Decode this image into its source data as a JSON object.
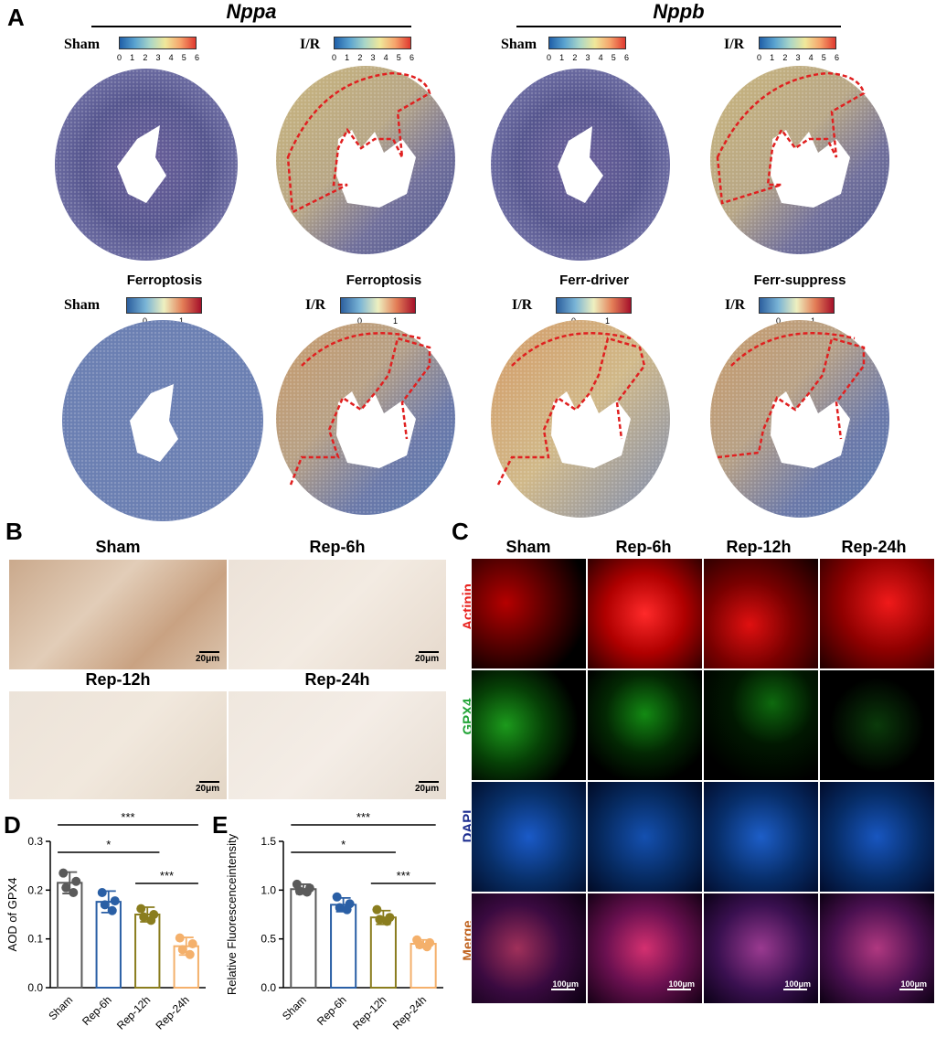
{
  "panel_a": {
    "letter": "A",
    "genes": [
      "Nppa",
      "Nppb"
    ],
    "colorbar_expr": {
      "ticks": [
        "0",
        "1",
        "2",
        "3",
        "4",
        "5",
        "6"
      ],
      "low": "#1f5fa8",
      "high": "#e0392f"
    },
    "colorbar_score": {
      "ticks": [
        "0",
        "1"
      ],
      "low": "#2c5f9e",
      "high": "#a5102a"
    },
    "row1_conditions": [
      "Sham",
      "I/R",
      "Sham",
      "I/R"
    ],
    "row2_titles": [
      "Ferroptosis",
      "Ferroptosis",
      "Ferr-driver",
      "Ferr-suppress"
    ],
    "row2_conditions": [
      "Sham",
      "I/R",
      "I/R",
      "I/R"
    ]
  },
  "panel_b": {
    "letter": "B",
    "titles": [
      "Sham",
      "Rep-6h",
      "Rep-12h",
      "Rep-24h"
    ],
    "scalebar": "20μm"
  },
  "panel_c": {
    "letter": "C",
    "columns": [
      "Sham",
      "Rep-6h",
      "Rep-12h",
      "Rep-24h"
    ],
    "rows": [
      {
        "label": "Actinin",
        "color": "#e8231f"
      },
      {
        "label": "GPX4",
        "color": "#22a437"
      },
      {
        "label": "DAPI",
        "color": "#1b2c8f"
      },
      {
        "label": "Merge",
        "color": "#c0621e"
      }
    ],
    "scalebar": "100μm"
  },
  "panel_d": {
    "letter": "D"
  },
  "panel_e": {
    "letter": "E"
  },
  "chart_data": [
    {
      "type": "bar",
      "ylabel": "AOD of GPX4",
      "categories": [
        "Sham",
        "Rep-6h",
        "Rep-12h",
        "Rep-24h"
      ],
      "values": [
        0.215,
        0.176,
        0.15,
        0.085
      ],
      "errors": [
        0.022,
        0.022,
        0.015,
        0.018
      ],
      "points": [
        [
          0.235,
          0.218,
          0.205,
          0.195
        ],
        [
          0.195,
          0.178,
          0.17,
          0.158
        ],
        [
          0.162,
          0.15,
          0.145,
          0.138
        ],
        [
          0.102,
          0.09,
          0.078,
          0.068
        ]
      ],
      "colors": [
        "#5a5a5a",
        "#2a5fa5",
        "#8a7d1e",
        "#f4b06b"
      ],
      "ylim": [
        0,
        0.3
      ],
      "yticks": [
        "0.0",
        "0.1",
        "0.2",
        "0.3"
      ],
      "significance": [
        {
          "from": 0,
          "to": 3,
          "label": "***"
        },
        {
          "from": 0,
          "to": 2,
          "label": "*"
        },
        {
          "from": 2,
          "to": 3,
          "label": "***"
        }
      ]
    },
    {
      "type": "bar",
      "ylabel": "Relative Fluorescenceintensity",
      "categories": [
        "Sham",
        "Rep-6h",
        "Rep-12h",
        "Rep-24h"
      ],
      "values": [
        1.01,
        0.85,
        0.72,
        0.45
      ],
      "errors": [
        0.05,
        0.07,
        0.07,
        0.04
      ],
      "points": [
        [
          1.06,
          1.02,
          0.99,
          0.98
        ],
        [
          0.93,
          0.86,
          0.82,
          0.8
        ],
        [
          0.8,
          0.72,
          0.7,
          0.68
        ],
        [
          0.49,
          0.46,
          0.44,
          0.42
        ]
      ],
      "colors": [
        "#5a5a5a",
        "#2a5fa5",
        "#8a7d1e",
        "#f4b06b"
      ],
      "ylim": [
        0,
        1.5
      ],
      "yticks": [
        "0.0",
        "0.5",
        "1.0",
        "1.5"
      ],
      "significance": [
        {
          "from": 0,
          "to": 3,
          "label": "***"
        },
        {
          "from": 0,
          "to": 2,
          "label": "*"
        },
        {
          "from": 2,
          "to": 3,
          "label": "***"
        }
      ]
    }
  ]
}
